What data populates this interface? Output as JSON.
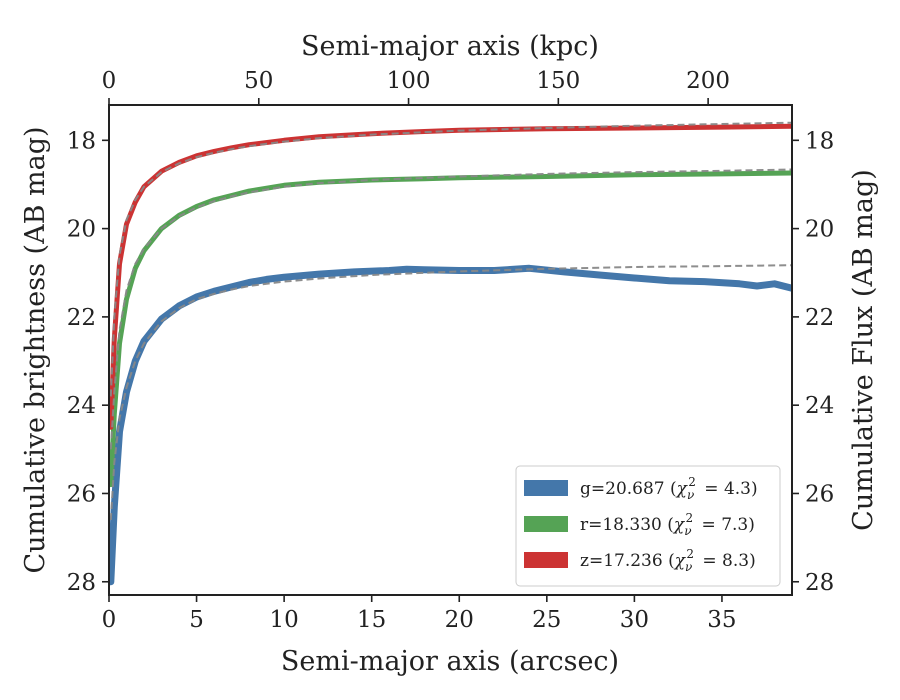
{
  "chart_data": {
    "type": "line",
    "xlabel": "Semi-major axis (arcsec)",
    "xlabel_top": "Semi-major axis (kpc)",
    "ylabel": "Cumulative brightness (AB mag)",
    "ylabel_right": "Cumulative Flux (AB mag)",
    "xlim": [
      0,
      39
    ],
    "ylim": [
      28.3,
      17.2
    ],
    "top_xlim": [
      0,
      228
    ],
    "x_ticks": [
      0,
      5,
      10,
      15,
      20,
      25,
      30,
      35
    ],
    "x_tick_labels": [
      "0",
      "5",
      "10",
      "15",
      "20",
      "25",
      "30",
      "35"
    ],
    "top_ticks": [
      0,
      50,
      100,
      150,
      200
    ],
    "top_tick_labels": [
      "0",
      "50",
      "100",
      "150",
      "200"
    ],
    "y_ticks": [
      18,
      20,
      22,
      24,
      26,
      28
    ],
    "y_tick_labels": [
      "18",
      "20",
      "22",
      "24",
      "26",
      "28"
    ],
    "legend_position": "lower-right",
    "series": [
      {
        "legend_main": "g=20.687 (",
        "chi_value": "= 4.3)",
        "color": "#4477aa",
        "band_width": 7,
        "x": [
          0.1,
          0.3,
          0.6,
          1,
          1.5,
          2,
          3,
          4,
          5,
          6,
          7,
          8,
          9,
          10,
          12,
          14,
          16,
          17,
          18,
          20,
          22,
          24,
          26,
          28,
          30,
          32,
          34,
          36,
          37,
          38,
          39
        ],
        "y": [
          28.0,
          26.3,
          24.6,
          23.7,
          23.0,
          22.55,
          22.05,
          21.75,
          21.55,
          21.42,
          21.32,
          21.22,
          21.15,
          21.1,
          21.03,
          20.98,
          20.95,
          20.92,
          20.93,
          20.95,
          20.95,
          20.9,
          20.98,
          21.05,
          21.12,
          21.18,
          21.2,
          21.25,
          21.3,
          21.25,
          21.35
        ]
      },
      {
        "legend_main": "r=18.330 (",
        "chi_value": "= 7.3)",
        "color": "#55a355",
        "band_width": 5,
        "x": [
          0.1,
          0.3,
          0.6,
          1,
          1.5,
          2,
          3,
          4,
          5,
          6,
          7,
          8,
          10,
          12,
          15,
          18,
          20,
          25,
          30,
          35,
          39
        ],
        "y": [
          25.8,
          24.2,
          22.6,
          21.6,
          20.9,
          20.5,
          20.0,
          19.7,
          19.5,
          19.35,
          19.25,
          19.15,
          19.02,
          18.95,
          18.9,
          18.87,
          18.85,
          18.82,
          18.78,
          18.76,
          18.74
        ]
      },
      {
        "legend_main": "z=17.236 (",
        "chi_value": "= 8.3)",
        "color": "#cc3333",
        "band_width": 5,
        "x": [
          0.1,
          0.3,
          0.6,
          1,
          1.5,
          2,
          3,
          4,
          5,
          6,
          7,
          8,
          10,
          12,
          15,
          18,
          20,
          25,
          30,
          35,
          39
        ],
        "y": [
          24.5,
          22.5,
          20.8,
          19.9,
          19.4,
          19.05,
          18.7,
          18.5,
          18.35,
          18.25,
          18.17,
          18.1,
          18.0,
          17.92,
          17.85,
          17.8,
          17.77,
          17.74,
          17.72,
          17.7,
          17.68
        ]
      }
    ],
    "model_curves": [
      {
        "color": "#888888",
        "x": [
          0.1,
          0.3,
          0.6,
          1,
          1.5,
          2,
          3,
          4,
          5,
          6,
          7,
          8,
          10,
          12,
          15,
          20,
          25,
          30,
          35,
          39
        ],
        "y": [
          26.6,
          25.3,
          24.3,
          23.6,
          23.0,
          22.6,
          22.1,
          21.8,
          21.6,
          21.48,
          21.38,
          21.3,
          21.2,
          21.13,
          21.05,
          20.97,
          20.91,
          20.87,
          20.85,
          20.83
        ]
      },
      {
        "color": "#888888",
        "x": [
          0.1,
          0.3,
          0.6,
          1,
          1.5,
          2,
          3,
          4,
          5,
          6,
          7,
          8,
          10,
          12,
          15,
          20,
          25,
          30,
          35,
          39
        ],
        "y": [
          25.0,
          23.7,
          22.3,
          21.4,
          20.8,
          20.45,
          20.0,
          19.72,
          19.52,
          19.38,
          19.27,
          19.18,
          19.05,
          18.97,
          18.9,
          18.82,
          18.76,
          18.72,
          18.69,
          18.66
        ]
      },
      {
        "color": "#888888",
        "x": [
          0.1,
          0.3,
          0.6,
          1,
          1.5,
          2,
          3,
          4,
          5,
          6,
          7,
          8,
          10,
          12,
          15,
          20,
          25,
          30,
          35,
          39
        ],
        "y": [
          23.8,
          22.0,
          20.6,
          19.8,
          19.35,
          19.05,
          18.72,
          18.52,
          18.38,
          18.28,
          18.2,
          18.13,
          18.03,
          17.95,
          17.87,
          17.78,
          17.72,
          17.67,
          17.63,
          17.6
        ]
      }
    ]
  }
}
